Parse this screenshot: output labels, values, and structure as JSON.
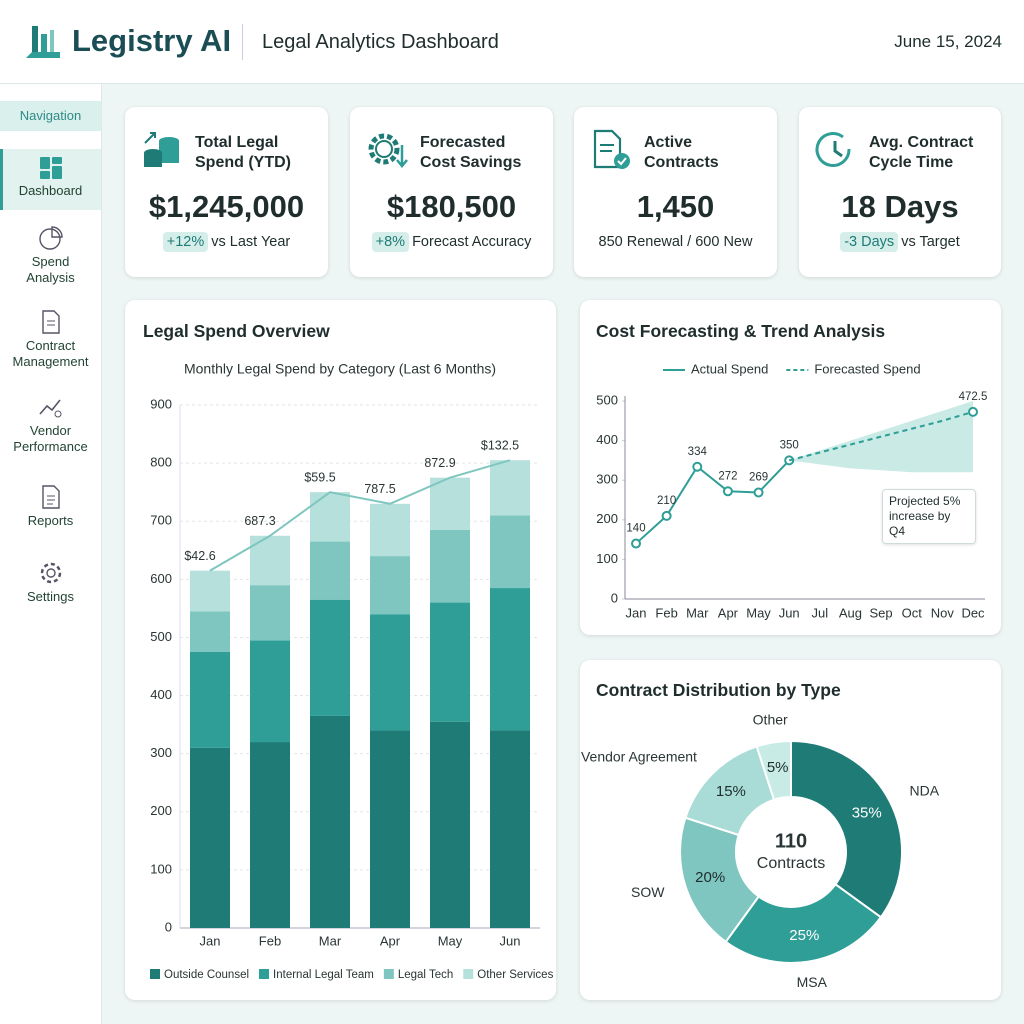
{
  "header": {
    "brand": "Legistry AI",
    "title": "Legal Analytics Dashboard",
    "date": "June 15, 2024"
  },
  "navigation": {
    "label": "Navigation",
    "items": [
      "Dashboard",
      "Spend Analysis",
      "Contract Management",
      "Vendor Performance",
      "Reports",
      "Settings"
    ],
    "active": 0
  },
  "kpis": [
    {
      "title": "Total Legal Spend (YTD)",
      "value": "$1,245,000",
      "badge": "+12%",
      "note": "vs Last Year"
    },
    {
      "title": "Forecasted Cost Savings",
      "value": "$180,500",
      "badge": "+8%",
      "note": "Forecast Accuracy"
    },
    {
      "title": "Active Contracts",
      "value": "1,450",
      "note": "850 Renewal / 600 New"
    },
    {
      "title": "Avg. Contract Cycle Time",
      "value": "18 Days",
      "badge": "-3 Days",
      "note": "vs Target"
    }
  ],
  "chart_data": [
    {
      "type": "bar",
      "stacked": true,
      "title": "Legal Spend Overview",
      "subtitle": "Monthly Legal Spend by Category (Last 6 Months)",
      "categories": [
        "Jan",
        "Feb",
        "Mar",
        "Apr",
        "May",
        "Jun"
      ],
      "series": [
        {
          "name": "Outside Counsel",
          "color": "#1e7b76",
          "values": [
            310,
            320,
            365,
            340,
            355,
            340
          ]
        },
        {
          "name": "Internal Legal Team",
          "color": "#2e9e97",
          "values": [
            165,
            175,
            200,
            200,
            205,
            245
          ]
        },
        {
          "name": "Legal Tech",
          "color": "#7fc6c0",
          "values": [
            70,
            95,
            100,
            100,
            125,
            125
          ]
        },
        {
          "name": "Other Services",
          "color": "#b5e0db",
          "values": [
            70,
            85,
            85,
            90,
            90,
            95
          ]
        }
      ],
      "annotations": [
        "$42.6",
        "687.3",
        "$59.5",
        "787.5",
        "872.9",
        "$132.5"
      ],
      "ylim": [
        0,
        900
      ],
      "yticks": [
        0,
        100,
        200,
        300,
        400,
        500,
        600,
        700,
        800,
        900
      ],
      "grid": true,
      "legend": "bottom"
    },
    {
      "type": "line",
      "title": "Cost Forecasting & Trend Analysis",
      "categories": [
        "Jan",
        "Feb",
        "Mar",
        "Apr",
        "May",
        "Jun",
        "Jul",
        "Aug",
        "Sep",
        "Oct",
        "Nov",
        "Dec"
      ],
      "series": [
        {
          "name": "Actual Spend",
          "color": "#2e9e97",
          "style": "solid",
          "marker": "all",
          "values": [
            140,
            210,
            334,
            272,
            269,
            350,
            null,
            null,
            null,
            null,
            null,
            null
          ]
        },
        {
          "name": "Forecasted Spend",
          "color": "#2e9e97",
          "style": "dashed",
          "marker": "end",
          "values": [
            null,
            null,
            null,
            null,
            null,
            350,
            370,
            390,
            410,
            430,
            450,
            472.5
          ]
        }
      ],
      "band_upper": [
        null,
        null,
        null,
        null,
        null,
        350,
        375,
        400,
        425,
        450,
        475,
        500
      ],
      "band_lower": [
        null,
        null,
        null,
        null,
        null,
        350,
        340,
        330,
        325,
        320,
        320,
        320
      ],
      "band_color": "#9fd8d2",
      "annotation": "Projected 5% increase by Q4",
      "ylim": [
        0,
        500
      ],
      "yticks": [
        0,
        100,
        200,
        300,
        400,
        500
      ],
      "grid": false,
      "legend": "top"
    },
    {
      "type": "pie",
      "donut": true,
      "title": "Contract Distribution by Type",
      "categories": [
        "NDA",
        "MSA",
        "SOW",
        "Vendor Agreement",
        "Other"
      ],
      "values": [
        35,
        25,
        20,
        15,
        5
      ],
      "value_labels": [
        "35%",
        "25%",
        "20%",
        "15%",
        "5%"
      ],
      "colors": [
        "#1e7b76",
        "#2e9e97",
        "#7fc6c0",
        "#a9dcd6",
        "#c8ebe6"
      ],
      "center_value": 110,
      "center_label": "Contracts"
    }
  ]
}
